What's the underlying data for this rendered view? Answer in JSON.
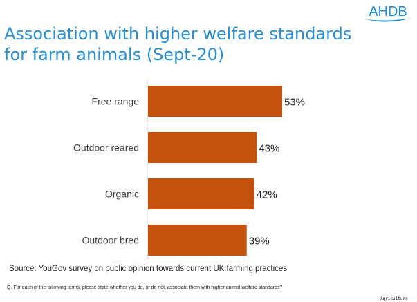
{
  "logo": "AHDB",
  "chart_data": {
    "type": "bar",
    "orientation": "horizontal",
    "title": "Association with higher welfare standards for farm animals (Sept-20)",
    "categories": [
      "Free range",
      "Outdoor reared",
      "Organic",
      "Outdoor bred"
    ],
    "values": [
      53,
      43,
      42,
      39
    ],
    "value_labels": [
      "53%",
      "43%",
      "42%",
      "39%"
    ],
    "xlim": [
      0,
      100
    ],
    "grid": false,
    "bar_color": "#c5520f",
    "title_color": "#2a8dd0"
  },
  "source": "Source: YouGov survey on public opinion towards current UK farming practices",
  "question": "Q. For each of the following terms, please state whether you do, or do not, associate them with higher animal welfare standards?",
  "footer": "Agriculture"
}
